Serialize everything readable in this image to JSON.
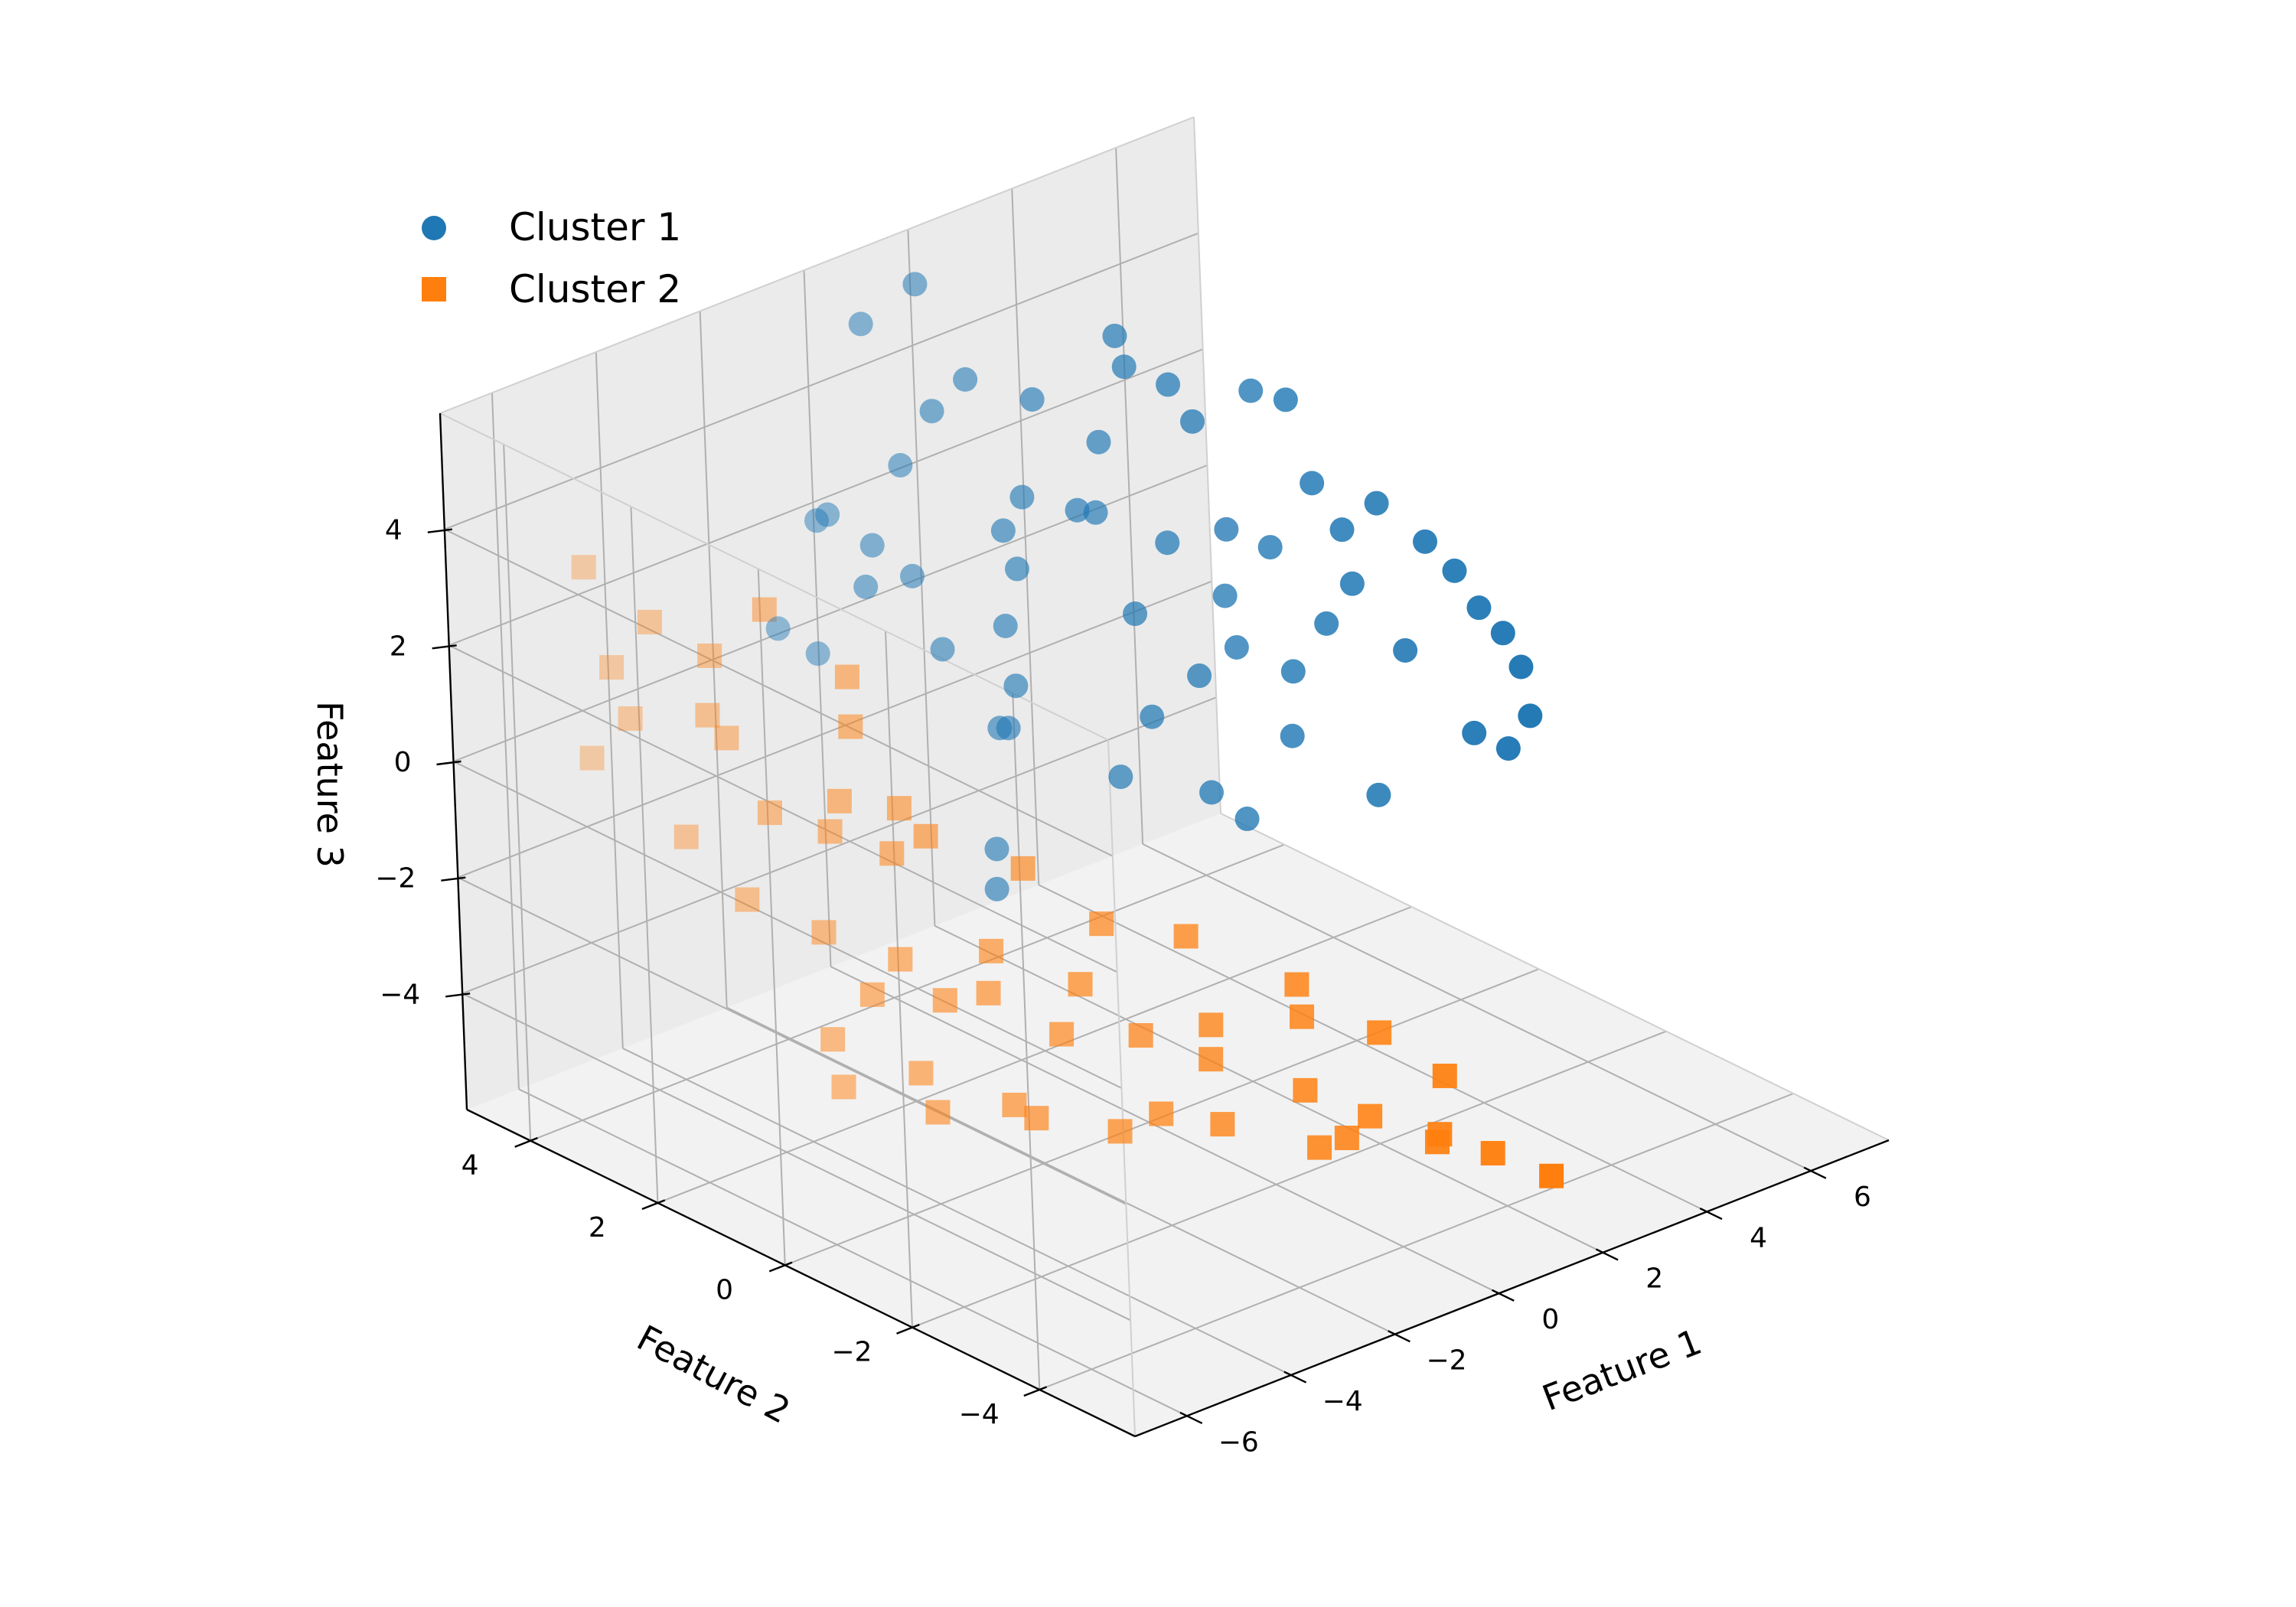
{
  "chart_data": {
    "type": "scatter",
    "projection": "3d",
    "xlabel": "Feature 1",
    "ylabel": "Feature 2",
    "zlabel": "Feature 3",
    "xlim": [
      -7,
      7.5
    ],
    "ylim": [
      -5.5,
      5
    ],
    "zlim": [
      -6,
      6
    ],
    "xticks": [
      -6,
      -4,
      -2,
      0,
      2,
      4,
      6
    ],
    "yticks": [
      -4,
      -2,
      0,
      2,
      4
    ],
    "zticks": [
      -4,
      -2,
      0,
      2,
      4
    ],
    "xtick_labels": [
      "−6",
      "−4",
      "−2",
      "0",
      "2",
      "4",
      "6"
    ],
    "ytick_labels": [
      "−4",
      "−2",
      "0",
      "2",
      "4"
    ],
    "ztick_labels": [
      "−4",
      "−2",
      "0",
      "2",
      "4"
    ],
    "grid": true,
    "legend_position": "top-left",
    "series": [
      {
        "name": "Cluster 1",
        "marker": "circle",
        "color": "#1f77b4",
        "points": [
          [
            1.5,
            4.5,
            5.5
          ],
          [
            0.8,
            4.8,
            4.9
          ],
          [
            1.2,
            3.5,
            4.5
          ],
          [
            0.5,
            4.0,
            3.0
          ],
          [
            2.8,
            2.3,
            4.8
          ],
          [
            3.0,
            2.6,
            5.1
          ],
          [
            4.0,
            1.3,
            4.5
          ],
          [
            4.3,
            1.0,
            4.4
          ],
          [
            3.5,
            2.2,
            4.3
          ],
          [
            2.5,
            2.5,
            3.5
          ],
          [
            1.8,
            2.0,
            2.8
          ],
          [
            3.2,
            1.1,
            2.5
          ],
          [
            4.5,
            0.8,
            3.0
          ],
          [
            5.0,
            0.2,
            2.8
          ],
          [
            5.3,
            -0.3,
            2.3
          ],
          [
            5.6,
            -0.5,
            1.8
          ],
          [
            5.8,
            -0.7,
            1.2
          ],
          [
            6.0,
            -0.9,
            0.8
          ],
          [
            6.2,
            -1.0,
            0.2
          ],
          [
            5.5,
            -0.8,
            -0.8
          ],
          [
            5.9,
            -1.0,
            -1.1
          ],
          [
            4.0,
            -0.5,
            -1.5
          ],
          [
            3.0,
            0.0,
            -0.4
          ],
          [
            2.6,
            0.5,
            1.0
          ],
          [
            3.3,
            0.2,
            0.5
          ],
          [
            4.2,
            0.4,
            0.9
          ],
          [
            4.6,
            0.3,
            1.5
          ],
          [
            3.9,
            1.0,
            2.0
          ],
          [
            2.9,
            1.8,
            2.0
          ],
          [
            2.0,
            1.6,
            1.2
          ],
          [
            2.4,
            2.8,
            2.2
          ],
          [
            1.6,
            3.0,
            2.6
          ],
          [
            1.1,
            2.7,
            1.7
          ],
          [
            0.6,
            2.5,
            1.0
          ],
          [
            0.4,
            2.2,
            0.2
          ],
          [
            0.3,
            2.4,
            -0.6
          ],
          [
            0.9,
            1.0,
            -0.9
          ],
          [
            1.3,
            0.8,
            0.1
          ],
          [
            1.9,
            0.4,
            -1.2
          ],
          [
            2.2,
            0.1,
            -1.6
          ],
          [
            -0.3,
            3.2,
            1.8
          ],
          [
            -0.8,
            3.4,
            2.4
          ],
          [
            -1.6,
            3.6,
            3.0
          ],
          [
            -2.1,
            3.0,
            3.6
          ],
          [
            -1.9,
            2.6,
            2.5
          ],
          [
            -2.5,
            2.9,
            1.4
          ],
          [
            -3.0,
            3.1,
            1.9
          ],
          [
            -1.2,
            2.0,
            1.5
          ],
          [
            -0.6,
            1.5,
            0.2
          ],
          [
            -1.5,
            1.0,
            -1.3
          ],
          [
            -2.0,
            0.6,
            -1.6
          ],
          [
            -0.2,
            1.8,
            3.3
          ],
          [
            0.9,
            3.8,
            3.9
          ],
          [
            2.1,
            3.2,
            4.0
          ],
          [
            3.7,
            2.0,
            3.7
          ],
          [
            4.8,
            0.6,
            2.2
          ],
          [
            6.1,
            -1.2,
            -0.5
          ],
          [
            5.2,
            0.0,
            0.3
          ],
          [
            3.6,
            1.5,
            1.0
          ],
          [
            2.7,
            1.2,
            0.1
          ]
        ]
      },
      {
        "name": "Cluster 2",
        "marker": "square",
        "color": "#ff7f0e",
        "points": [
          [
            -4.6,
            3.8,
            2.2
          ],
          [
            -5.0,
            4.1,
            1.4
          ],
          [
            -4.2,
            3.2,
            1.8
          ],
          [
            -3.6,
            2.8,
            2.6
          ],
          [
            -3.0,
            2.0,
            0.8
          ],
          [
            -4.0,
            2.5,
            -0.6
          ],
          [
            -3.5,
            1.8,
            -0.2
          ],
          [
            -2.6,
            1.2,
            -0.8
          ],
          [
            -4.3,
            3.6,
            -1.5
          ],
          [
            -3.9,
            3.0,
            -2.4
          ],
          [
            -3.3,
            2.3,
            -2.8
          ],
          [
            -2.7,
            1.6,
            -3.1
          ],
          [
            -2.0,
            0.8,
            -3.5
          ],
          [
            -1.2,
            0.0,
            -3.2
          ],
          [
            -0.8,
            -0.6,
            -3.9
          ],
          [
            -0.2,
            -1.2,
            -4.2
          ],
          [
            0.5,
            -2.1,
            -4.5
          ],
          [
            1.0,
            -2.7,
            -4.8
          ],
          [
            1.6,
            -3.3,
            -5.0
          ],
          [
            2.0,
            -3.8,
            -5.2
          ],
          [
            2.5,
            -4.3,
            -5.5
          ],
          [
            -0.5,
            -1.6,
            -5.0
          ],
          [
            -1.5,
            -0.8,
            -5.2
          ],
          [
            -2.3,
            0.2,
            -5.0
          ],
          [
            -3.1,
            1.0,
            -4.6
          ],
          [
            -3.8,
            1.8,
            -4.2
          ],
          [
            -2.0,
            1.5,
            -4.0
          ],
          [
            -1.0,
            0.5,
            -4.4
          ],
          [
            0.3,
            -0.8,
            -4.0
          ],
          [
            1.2,
            -1.5,
            -3.8
          ],
          [
            -0.4,
            0.3,
            -2.6
          ],
          [
            -1.6,
            2.6,
            -2.2
          ],
          [
            -2.4,
            2.9,
            -1.7
          ],
          [
            -5.2,
            4.3,
            -0.2
          ],
          [
            -4.8,
            4.0,
            0.5
          ],
          [
            -3.7,
            3.4,
            0.1
          ],
          [
            -2.2,
            2.7,
            1.0
          ],
          [
            -1.9,
            2.2,
            -1.1
          ],
          [
            -0.9,
            1.1,
            -1.9
          ],
          [
            0.6,
            -0.2,
            -2.9
          ],
          [
            1.6,
            -1.1,
            -3.6
          ],
          [
            2.3,
            -1.8,
            -4.3
          ],
          [
            2.8,
            -2.4,
            -4.9
          ],
          [
            -1.3,
            -1.3,
            -4.7
          ],
          [
            -2.6,
            -0.4,
            -4.8
          ],
          [
            -3.4,
            0.5,
            -4.9
          ],
          [
            -4.1,
            1.4,
            -4.7
          ],
          [
            -2.9,
            1.9,
            -3.8
          ],
          [
            -1.8,
            0.9,
            -2.9
          ],
          [
            0.9,
            -2.4,
            -5.3
          ],
          [
            1.9,
            -3.0,
            -5.4
          ],
          [
            -0.1,
            -2.8,
            -4.9
          ],
          [
            -4.4,
            3.1,
            0.9
          ],
          [
            -5.1,
            4.4,
            3.0
          ]
        ]
      }
    ]
  }
}
